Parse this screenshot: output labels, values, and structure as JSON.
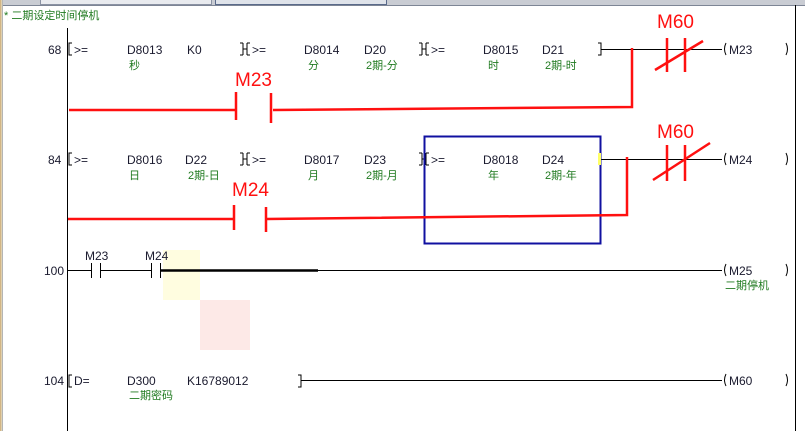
{
  "header_comment": "* 二期设定时间停机",
  "rungs": [
    {
      "step": "68",
      "instructions": [
        {
          "op": ">=",
          "s1": "D8013",
          "s2": "K0",
          "c1": "秒",
          "c2": ""
        },
        {
          "op": ">=",
          "s1": "D8014",
          "s2": "D20",
          "c1": "分",
          "c2": "2期-分"
        },
        {
          "op": ">=",
          "s1": "D8015",
          "s2": "D21",
          "c1": "时",
          "c2": "2期-时"
        }
      ],
      "coil": "M23"
    },
    {
      "step": "84",
      "instructions": [
        {
          "op": ">=",
          "s1": "D8016",
          "s2": "D22",
          "c1": "日",
          "c2": "2期-日"
        },
        {
          "op": ">=",
          "s1": "D8017",
          "s2": "D23",
          "c1": "月",
          "c2": "2期-月"
        },
        {
          "op": ">=",
          "s1": "D8018",
          "s2": "D24",
          "c1": "年",
          "c2": "2期-年"
        }
      ],
      "coil": "M24"
    },
    {
      "step": "100",
      "contacts": [
        "M23",
        "M24"
      ],
      "coil": "M25",
      "coil_comment": "二期停机"
    },
    {
      "step": "104",
      "instructions": [
        {
          "op": "D=",
          "s1": "D300",
          "s2": "K16789012",
          "c1": "二期密码"
        }
      ],
      "coil": "M60"
    }
  ],
  "annotations": {
    "m23": "M23",
    "m24": "M24",
    "m60_a": "M60",
    "m60_b": "M60"
  },
  "colors": {
    "annotation": "#ff1010",
    "comment": "#1f7a1f",
    "selection": "#1010a0",
    "ladder": "#000000"
  }
}
